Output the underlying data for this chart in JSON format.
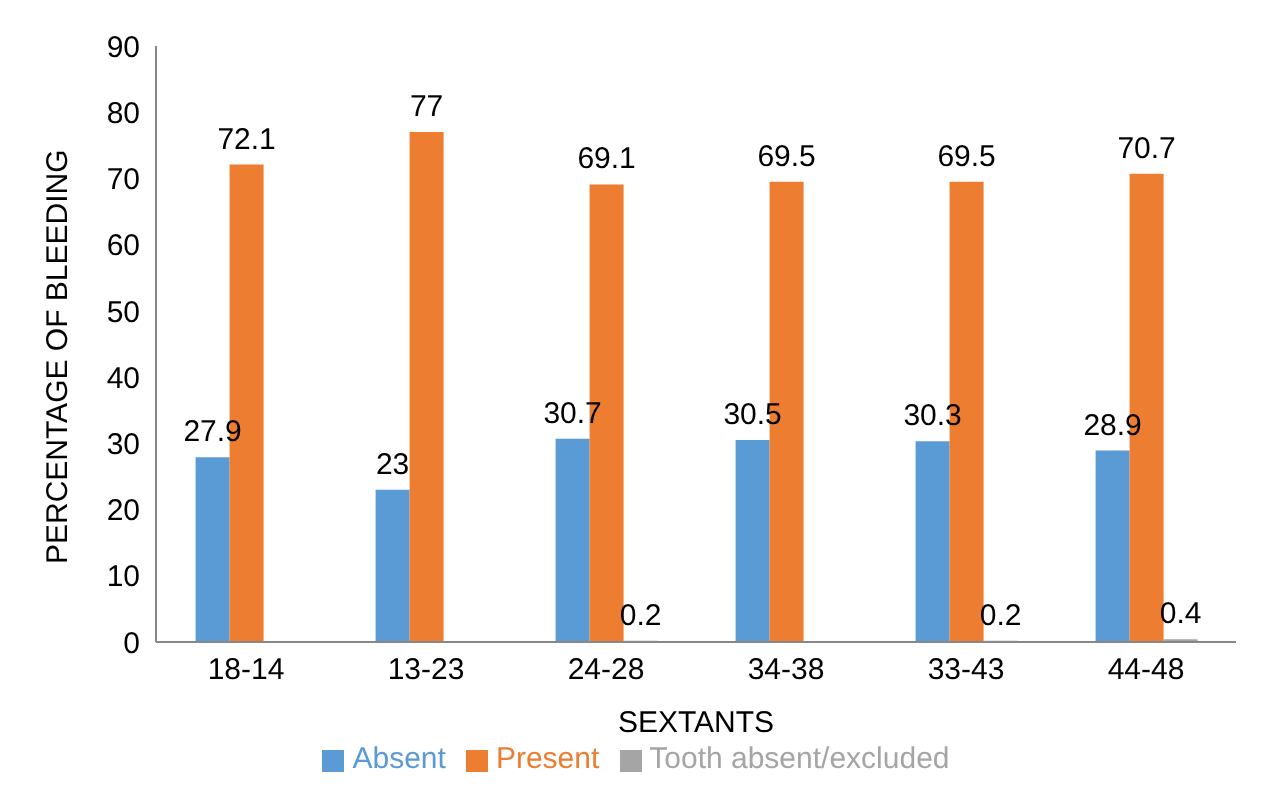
{
  "chart_data": {
    "type": "bar",
    "xlabel": "SEXTANTS",
    "ylabel": "PERCENTAGE OF BLEEDING",
    "categories": [
      "18-14",
      "13-23",
      "24-28",
      "34-38",
      "33-43",
      "44-48"
    ],
    "series": [
      {
        "name": "Absent",
        "color": "#5b9bd5",
        "values": [
          27.9,
          23,
          30.7,
          30.5,
          30.3,
          28.9
        ],
        "value_labels": [
          "27.9",
          "23",
          "30.7",
          "30.5",
          "30.3",
          "28.9"
        ]
      },
      {
        "name": "Present",
        "color": "#ed7d31",
        "values": [
          72.1,
          77,
          69.1,
          69.5,
          69.5,
          70.7
        ],
        "value_labels": [
          "72.1",
          "77",
          "69.1",
          "69.5",
          "69.5",
          "70.7"
        ]
      },
      {
        "name": "Tooth absent/excluded",
        "color": "#a5a5a5",
        "values": [
          0,
          0,
          0.2,
          0,
          0.2,
          0.4
        ],
        "value_labels": [
          null,
          null,
          "0.2",
          null,
          "0.2",
          "0.4"
        ]
      }
    ],
    "ylim": [
      0,
      90
    ],
    "yticks": [
      0,
      10,
      20,
      30,
      40,
      50,
      60,
      70,
      80,
      90
    ],
    "grid": false,
    "legend": "bottom"
  }
}
